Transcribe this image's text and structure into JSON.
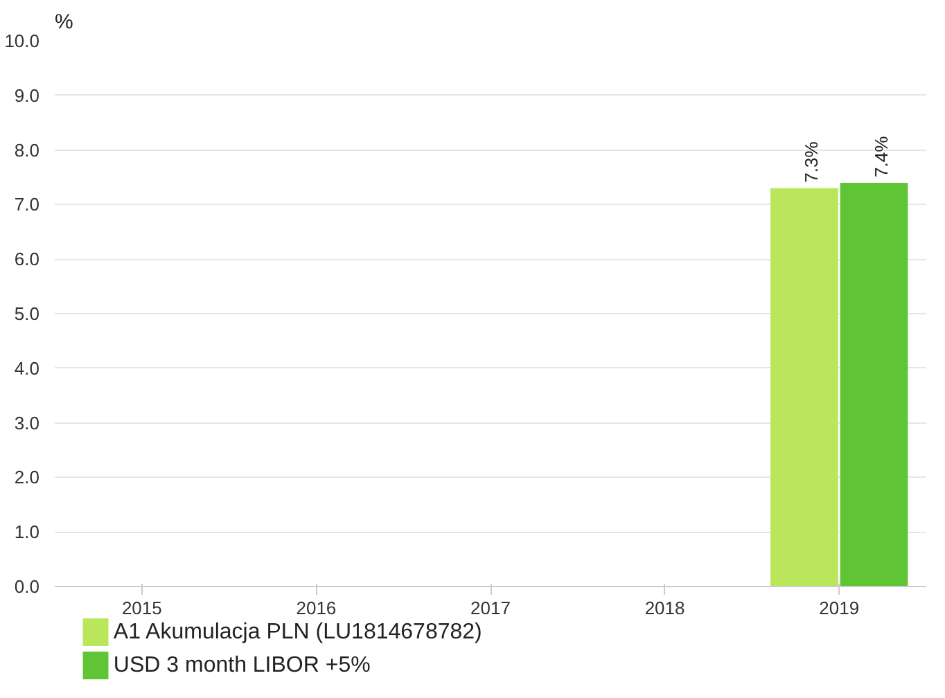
{
  "chart_data": {
    "type": "bar",
    "ylabel": "%",
    "categories": [
      "2015",
      "2016",
      "2017",
      "2018",
      "2019"
    ],
    "series": [
      {
        "name": "A1 Akumulacja PLN (LU1814678782)",
        "color": "#b9e65a",
        "values": [
          null,
          null,
          null,
          null,
          7.3
        ],
        "value_labels": [
          null,
          null,
          null,
          null,
          "7.3%"
        ]
      },
      {
        "name": "USD 3 month LIBOR +5%",
        "color": "#5fc535",
        "values": [
          null,
          null,
          null,
          null,
          7.4
        ],
        "value_labels": [
          null,
          null,
          null,
          null,
          "7.4%"
        ]
      }
    ],
    "ylim": [
      0,
      10
    ],
    "yticks": [
      {
        "value": 0,
        "label": "0.0"
      },
      {
        "value": 1,
        "label": "1.0"
      },
      {
        "value": 2,
        "label": "2.0"
      },
      {
        "value": 3,
        "label": "3.0"
      },
      {
        "value": 4,
        "label": "4.0"
      },
      {
        "value": 5,
        "label": "5.0"
      },
      {
        "value": 6,
        "label": "6.0"
      },
      {
        "value": 7,
        "label": "7.0"
      },
      {
        "value": 8,
        "label": "8.0"
      },
      {
        "value": 9,
        "label": "9.0"
      },
      {
        "value": 10,
        "label": "10.0"
      }
    ],
    "grid": "y",
    "legend": "bottom"
  }
}
